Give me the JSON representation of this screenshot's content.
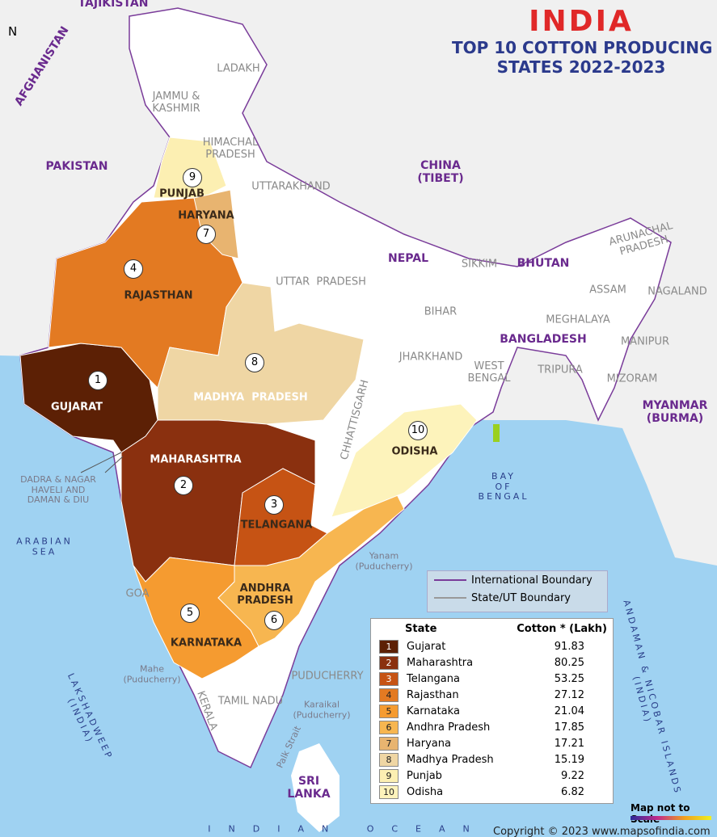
{
  "title": {
    "heading": "INDIA",
    "subtitle": "TOP 10 COTTON PRODUCING\nSTATES 2022-2023"
  },
  "north": "N",
  "map": {
    "countries": [
      "TAJIKISTAN",
      "AFGHANISTAN",
      "PAKISTAN",
      "CHINA\n(TIBET)",
      "NEPAL",
      "BHUTAN",
      "BANGLADESH",
      "MYANMAR\n(BURMA)",
      "SRI\nLANKA"
    ],
    "states": [
      "LADAKH",
      "JAMMU &\nKASHMIR",
      "HIMACHAL\nPRADESH",
      "UTTARAKHAND",
      "UTTAR  PRADESH",
      "SIKKIM",
      "ARUNACHAL\nPRADESH",
      "ASSAM",
      "NAGALAND",
      "MEGHALAYA",
      "BIHAR",
      "JHARKHAND",
      "WEST\nBENGAL",
      "TRIPURA",
      "MANIPUR",
      "MIZORAM",
      "CHHATTISGARH",
      "TAMIL NADU",
      "KERALA",
      "GOA",
      "PUDUCHERRY"
    ],
    "producers": [
      "PUNJAB",
      "HARYANA",
      "RAJASTHAN",
      "GUJARAT",
      "MADHYA  PRADESH",
      "MAHARASHTRA",
      "TELANGANA",
      "ANDHRA\nPRADESH",
      "KARNATAKA",
      "ODISHA"
    ],
    "places": [
      "DADRA & NAGAR\nHAVELI AND\nDAMAN & DIU",
      "Yanam\n(Puducherry)",
      "Mahe\n(Puducherry)",
      "Karaikal\n(Puducherry)",
      "Palk Strait"
    ],
    "water": [
      "ARABIAN\nSEA",
      "BAY\nOF\nBENGAL",
      "LAKSHADWEEP\n(INDIA)",
      "ANDAMAN & NICOBAR ISLANDS\n(INDIA)",
      "INDIAN OCEAN"
    ]
  },
  "legend": {
    "boundaries": [
      "International Boundary",
      "State/UT Boundary"
    ]
  },
  "table": {
    "columns": [
      "State",
      "Cotton * (Lakh)"
    ],
    "rows": [
      {
        "rank": 1,
        "state": "Gujarat",
        "value": 91.83,
        "color": "#5c2005"
      },
      {
        "rank": 2,
        "state": "Maharashtra",
        "value": 80.25,
        "color": "#8a300f"
      },
      {
        "rank": 3,
        "state": "Telangana",
        "value": 53.25,
        "color": "#c65314"
      },
      {
        "rank": 4,
        "state": "Rajasthan",
        "value": 27.12,
        "color": "#e37a22"
      },
      {
        "rank": 5,
        "state": "Karnataka",
        "value": 21.04,
        "color": "#f59b30"
      },
      {
        "rank": 6,
        "state": "Andhra Pradesh",
        "value": 17.85,
        "color": "#f7b650"
      },
      {
        "rank": 7,
        "state": "Haryana",
        "value": 17.21,
        "color": "#e8b470"
      },
      {
        "rank": 8,
        "state": "Madhya Pradesh",
        "value": 15.19,
        "color": "#efd6a4"
      },
      {
        "rank": 9,
        "state": "Punjab",
        "value": 9.22,
        "color": "#fcefb2"
      },
      {
        "rank": 10,
        "state": "Odisha",
        "value": 6.82,
        "color": "#fdf3bb"
      }
    ]
  },
  "footer": {
    "scale_note": "Map not to Scale",
    "copyright": "Copyright © 2023 www.mapsofindia.com"
  }
}
